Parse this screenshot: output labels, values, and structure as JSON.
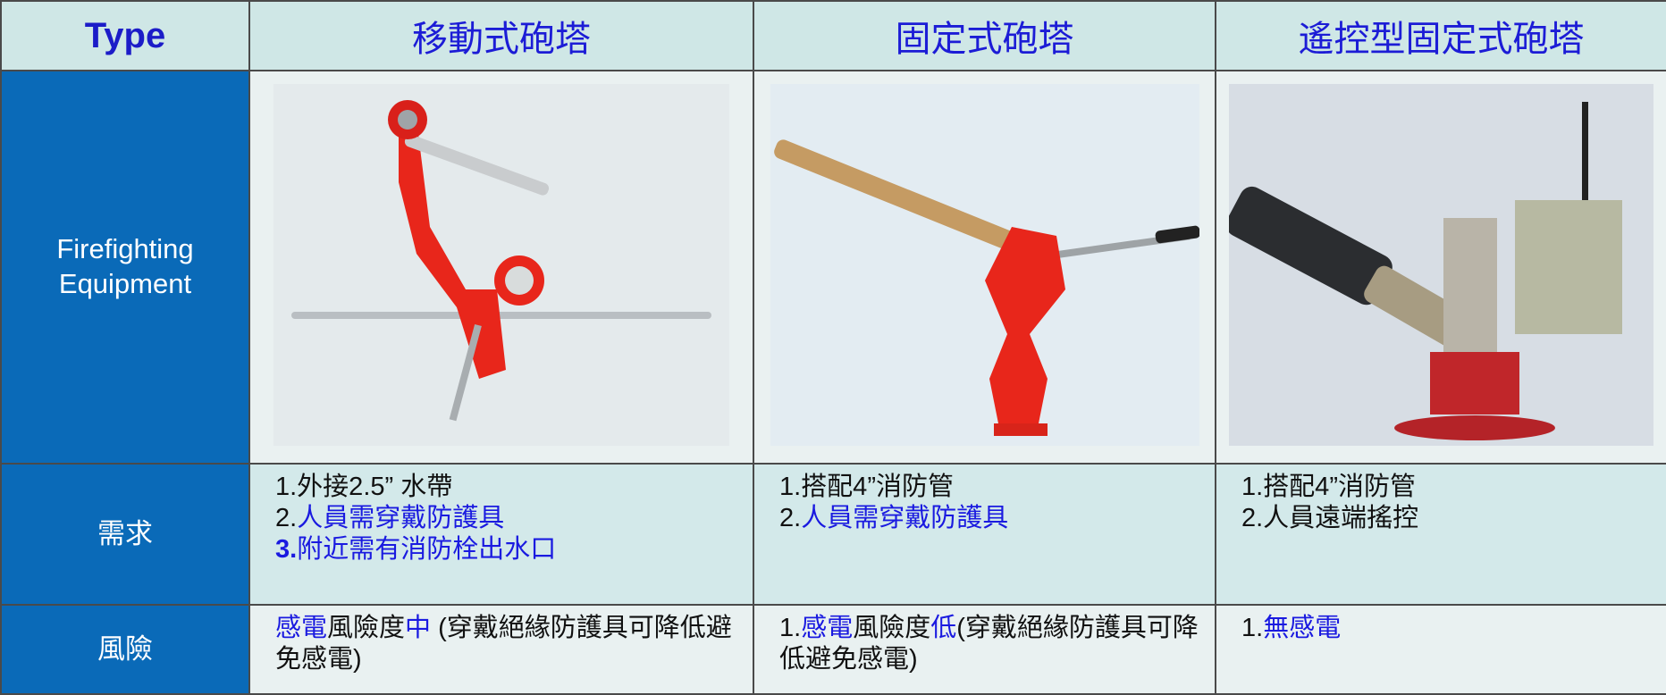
{
  "table": {
    "header": [
      "Type",
      "移動式砲塔",
      "固定式砲塔",
      "遙控型固定式砲塔"
    ],
    "equipment_label": "Firefighting Equipment",
    "rows": [
      {
        "label": "需求",
        "cells": [
          [
            [
              {
                "text": "1.外接2.5” 水帶"
              }
            ],
            [
              {
                "text": "2."
              },
              {
                "text": "人員需穿戴防護具",
                "highlight": true
              }
            ],
            [
              {
                "text": "3.",
                "highlight": true,
                "bold": true
              },
              {
                "text": "附近需有消防栓出水口",
                "highlight": true
              }
            ]
          ],
          [
            [
              {
                "text": "1.搭配4”消防管"
              }
            ],
            [
              {
                "text": "2."
              },
              {
                "text": "人員需穿戴防護具",
                "highlight": true
              }
            ]
          ],
          [
            [
              {
                "text": "1.搭配4”消防管"
              }
            ],
            [
              {
                "text": "2.人員遠端搖控"
              }
            ]
          ]
        ]
      },
      {
        "label": "風險",
        "cells": [
          [
            [
              {
                "text": "感電",
                "highlight": true
              },
              {
                "text": "風險度"
              },
              {
                "text": "中",
                "highlight": true
              },
              {
                "text": " (穿戴絕緣防護具可降低避免感電)"
              }
            ]
          ],
          [
            [
              {
                "text": "1."
              },
              {
                "text": "感電",
                "highlight": true
              },
              {
                "text": "風險度"
              },
              {
                "text": "低",
                "highlight": true
              },
              {
                "text": "(穿戴絕緣防護具可降低避免感電)"
              }
            ]
          ],
          [
            [
              {
                "text": "1."
              },
              {
                "text": "無感電",
                "highlight": true
              }
            ]
          ]
        ]
      }
    ]
  }
}
